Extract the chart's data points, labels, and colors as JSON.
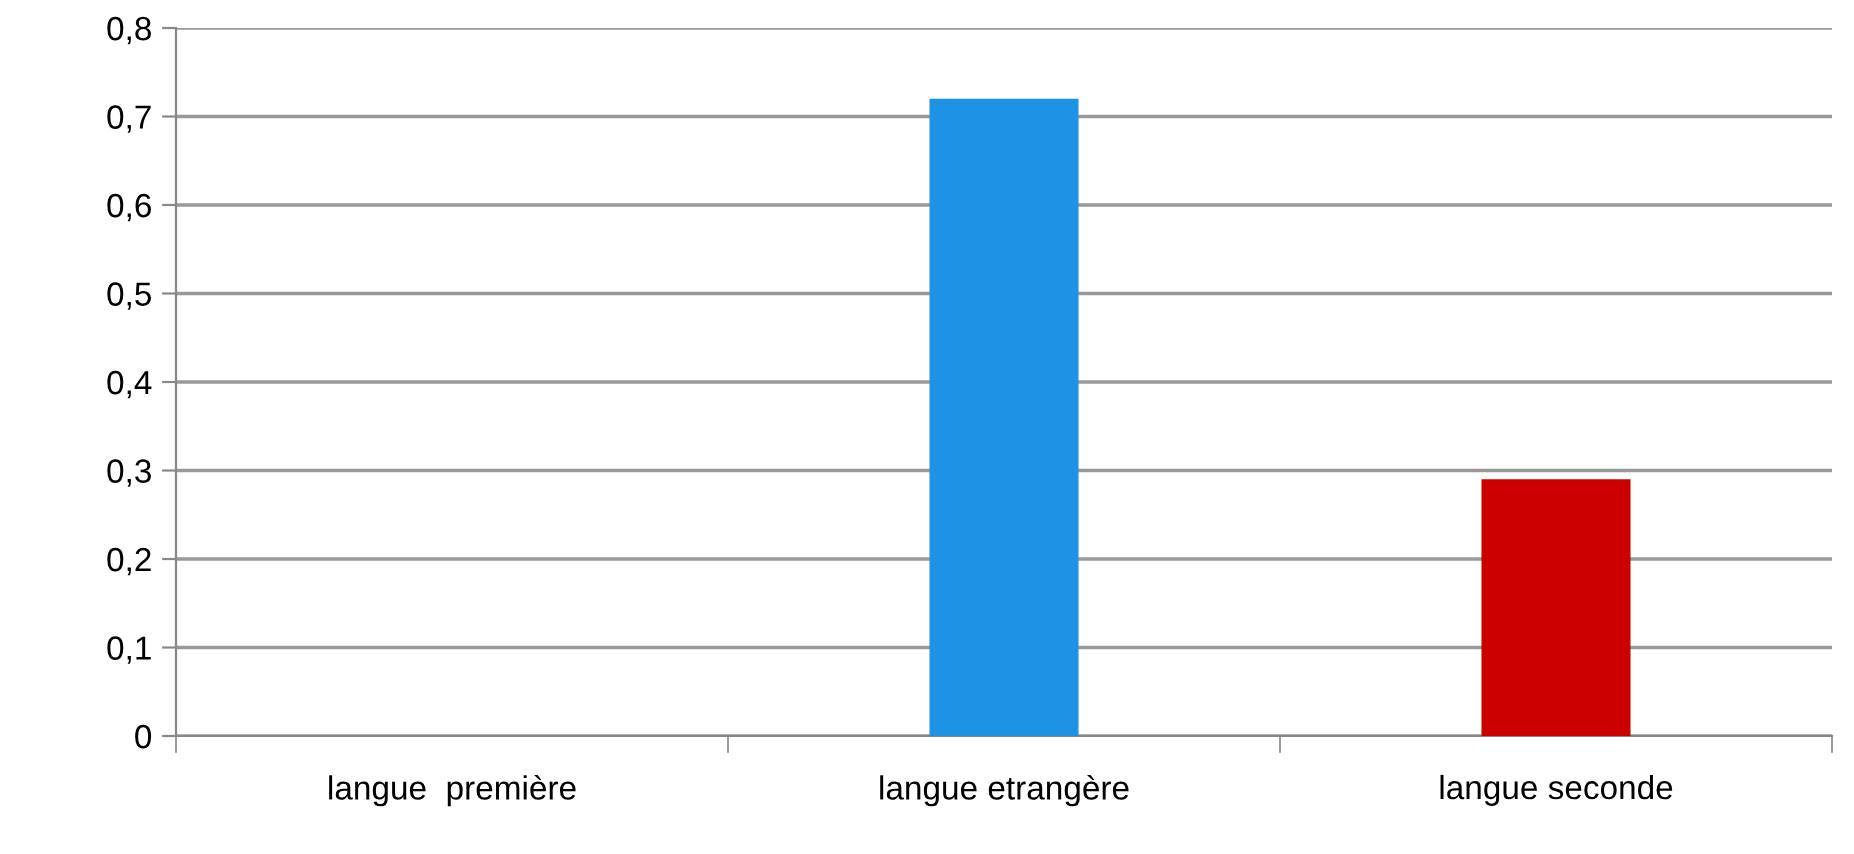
{
  "chart_data": {
    "type": "bar",
    "categories": [
      "langue  première",
      "langue etrangère",
      "langue seconde"
    ],
    "values": [
      0,
      0.72,
      0.29
    ],
    "colors": [
      "#1f93e3",
      "#1f93e3",
      "#cc0000"
    ],
    "ylim": [
      0,
      0.8
    ],
    "yticks": [
      {
        "value": 0,
        "label": "0"
      },
      {
        "value": 0.1,
        "label": "0,1"
      },
      {
        "value": 0.2,
        "label": "0,2"
      },
      {
        "value": 0.3,
        "label": "0,3"
      },
      {
        "value": 0.4,
        "label": "0,4"
      },
      {
        "value": 0.5,
        "label": "0,5"
      },
      {
        "value": 0.6,
        "label": "0,6"
      },
      {
        "value": 0.7,
        "label": "0,7"
      },
      {
        "value": 0.8,
        "label": "0,8"
      }
    ],
    "grid": "y",
    "legend": false
  }
}
